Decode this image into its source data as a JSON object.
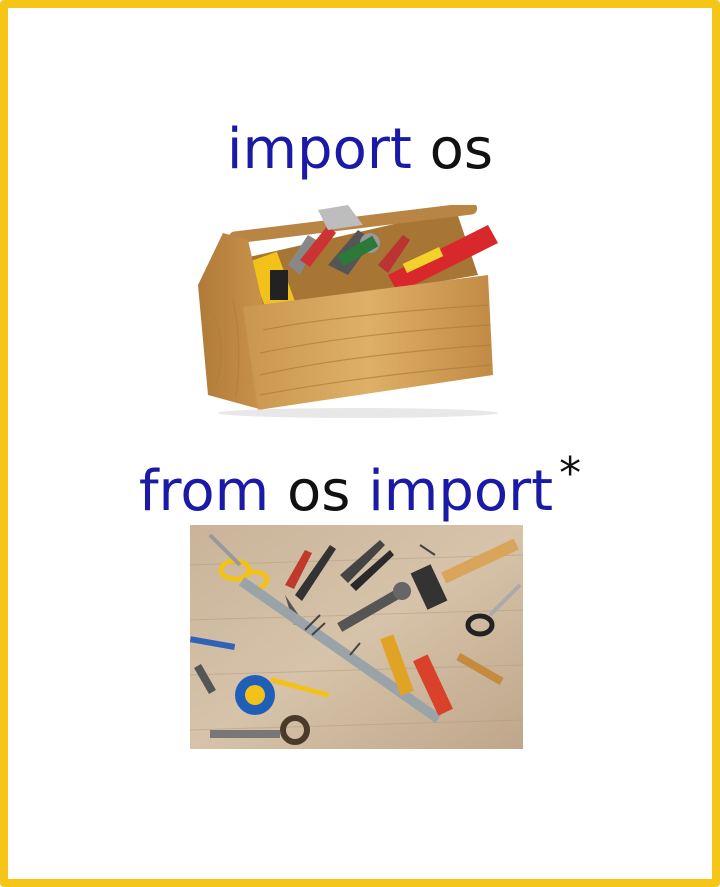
{
  "caption_top": {
    "keyword": "import",
    "module": "os"
  },
  "caption_bottom": {
    "keyword_from": "from",
    "module": "os",
    "keyword_import": "import",
    "wildcard": "*"
  },
  "colors": {
    "border": "#f5c518",
    "keyword": "#1a1aa6",
    "text": "#111111",
    "background": "#ffffff"
  },
  "images": {
    "top": "wooden-toolbox-icon",
    "bottom": "scattered-tools-photo-icon"
  }
}
